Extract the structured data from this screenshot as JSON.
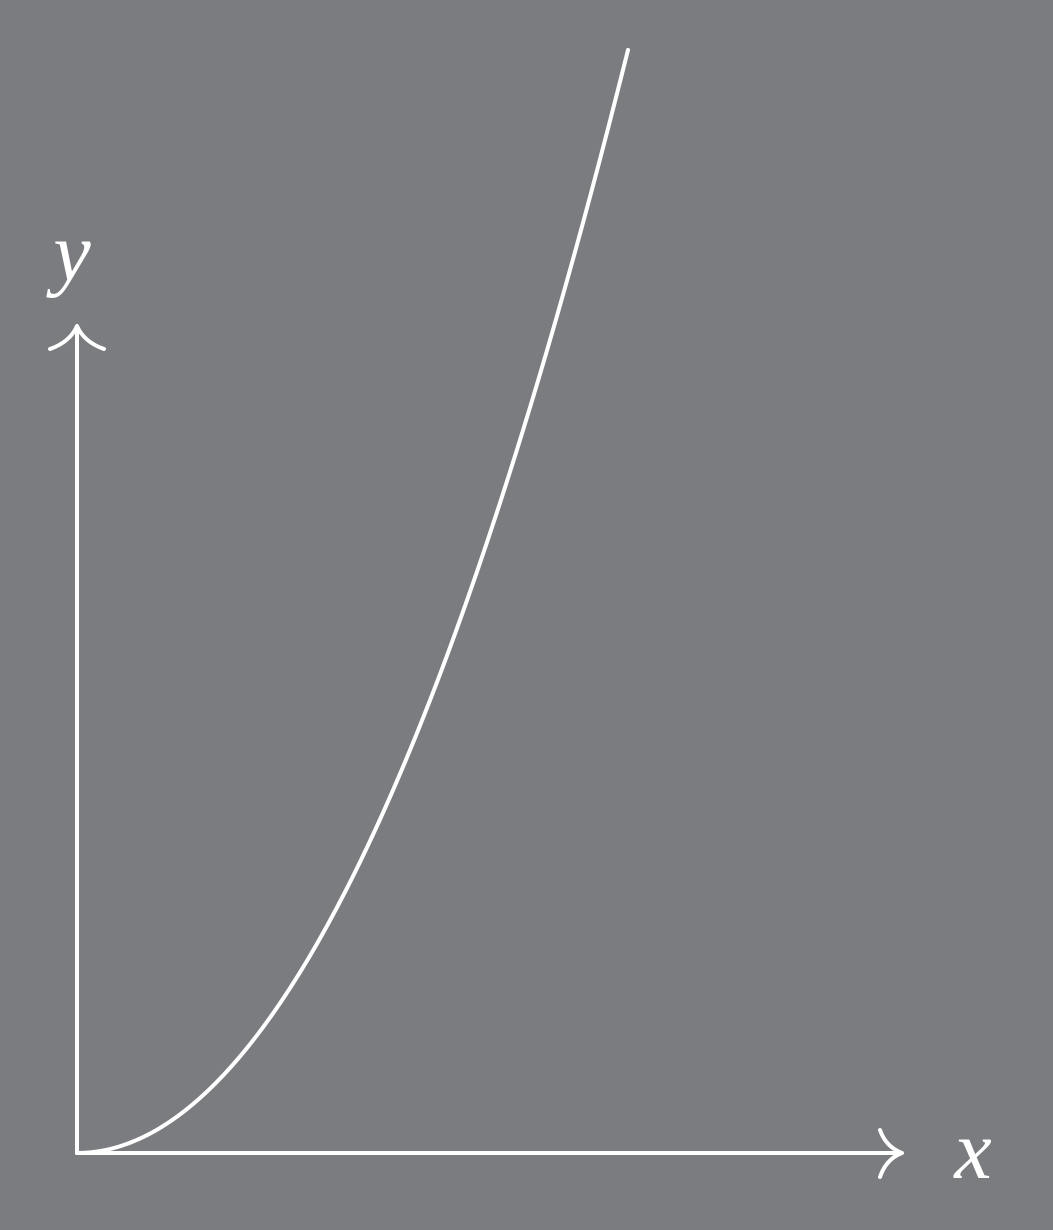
{
  "axes": {
    "x_label": "x",
    "y_label": "y"
  }
}
